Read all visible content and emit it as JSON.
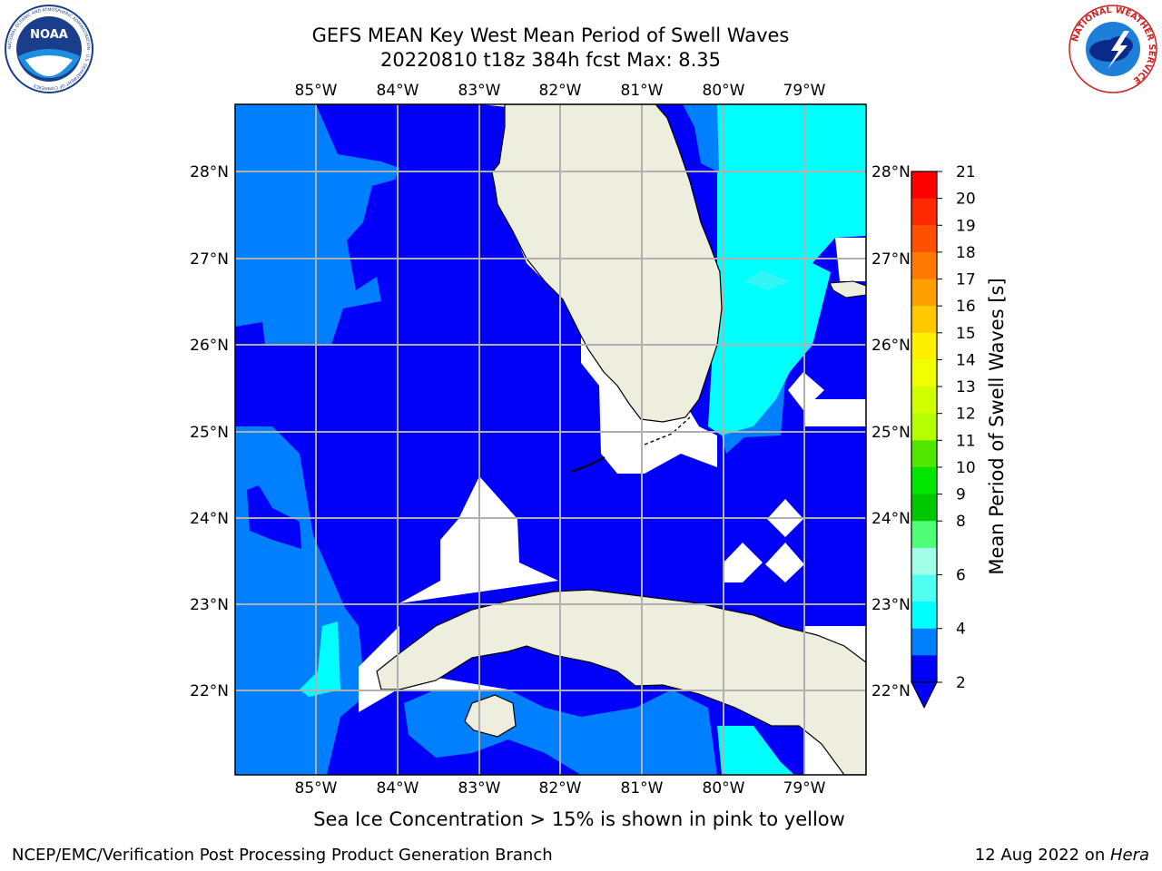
{
  "header": {
    "title_line1": "GEFS MEAN Key West Mean Period of Swell Waves",
    "title_line2": "20220810 t18z 384h fcst   Max: 8.35"
  },
  "logos": {
    "left": {
      "icon": "noaa-logo-icon",
      "text": "NOAA",
      "ring_text": "NATIONAL OCEANIC AND ATMOSPHERIC ADMINISTRATION · U.S. DEPARTMENT OF COMMERCE"
    },
    "right": {
      "icon": "nws-logo-icon",
      "ring_text": "NATIONAL WEATHER SERVICE"
    }
  },
  "map": {
    "lon_labels": [
      "85°W",
      "84°W",
      "83°W",
      "82°W",
      "81°W",
      "80°W",
      "79°W"
    ],
    "lat_labels": [
      "28°N",
      "27°N",
      "26°N",
      "25°N",
      "24°N",
      "23°N",
      "22°N"
    ],
    "colors": {
      "land": "#eeeede",
      "level_2_4": "#0080ff",
      "level_4_6": "#0000f8",
      "level_6_8": "#00ffff",
      "level_8_9": "#33f5f5",
      "grid": "#b0b0b0"
    }
  },
  "colorbar": {
    "label": "Mean Period of Swell Waves [s]",
    "ticks": [
      "21",
      "20",
      "19",
      "18",
      "17",
      "16",
      "15",
      "14",
      "13",
      "12",
      "11",
      "10",
      "9",
      "8",
      "6",
      "4",
      "2"
    ],
    "colors": [
      "#ff0000",
      "#ff2800",
      "#ff5000",
      "#ff7800",
      "#ffa000",
      "#ffc800",
      "#fff000",
      "#f0ff00",
      "#d2ff00",
      "#b4ff00",
      "#50e600",
      "#00e600",
      "#00c800",
      "#50ff78",
      "#a0ffe6",
      "#50fff0",
      "#00ffff",
      "#0080ff",
      "#0000f8"
    ]
  },
  "footer": {
    "note": "Sea Ice Concentration > 15% is shown in pink to yellow",
    "left": "NCEP/EMC/Verification Post Processing Product Generation Branch",
    "right_prefix": "12 Aug 2022 on ",
    "right_host": "Hera"
  }
}
